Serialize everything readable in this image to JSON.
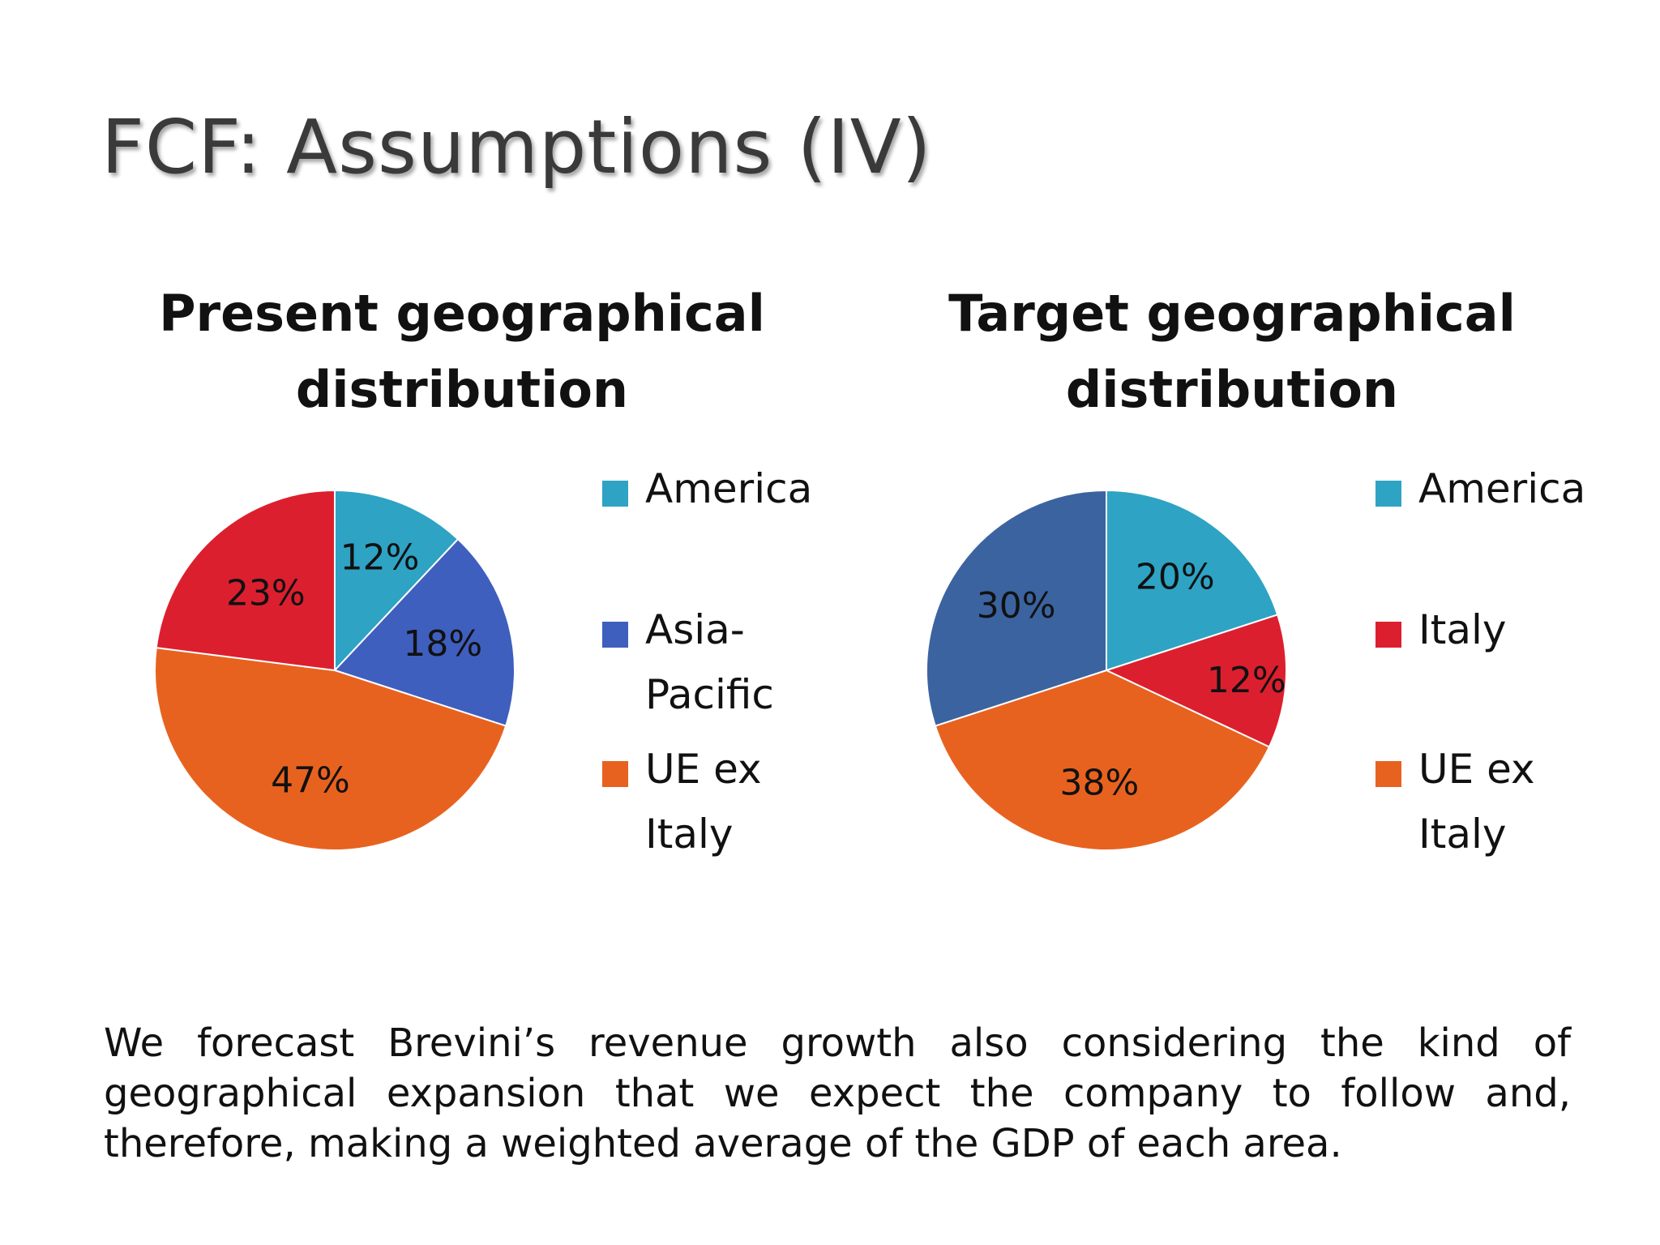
{
  "slide": {
    "title": "FCF: Assumptions (IV)",
    "body": "We forecast Brevini’s revenue growth also considering the kind of geographical expansion that we expect the company to follow and, therefore, making a weighted average of the GDP of each area."
  },
  "colors": {
    "America": "#2ea3c4",
    "Asia-Pacific": "#3f5fbf",
    "UE ex Italy": "#e8621f",
    "Italy": "#dc1f2e",
    "Asia-Pacific (target)": "#3b63a0"
  },
  "chart_data": [
    {
      "type": "pie",
      "title": "Present geographical distribution",
      "labels": [
        "America",
        "Asia-Pacific",
        "UE ex Italy",
        "Italy"
      ],
      "legend_labels": [
        "America",
        "Asia-\nPacific",
        "UE ex\nItaly"
      ],
      "values": [
        12,
        18,
        47,
        23
      ],
      "data_labels": [
        "12%",
        "18%",
        "47%",
        "23%"
      ],
      "colors": [
        "#2ea3c4",
        "#3f5fbf",
        "#e8621f",
        "#dc1f2e"
      ],
      "legend_placement": "right"
    },
    {
      "type": "pie",
      "title": "Target geographical distribution",
      "labels": [
        "America",
        "Italy",
        "UE ex Italy",
        "Asia-Pacific"
      ],
      "legend_labels": [
        "America",
        "Italy",
        "UE ex\nItaly"
      ],
      "values": [
        20,
        12,
        38,
        30
      ],
      "data_labels": [
        "20%",
        "12%",
        "38%",
        "30%"
      ],
      "colors": [
        "#2ea3c4",
        "#dc1f2e",
        "#e8621f",
        "#3b63a0"
      ],
      "legend_placement": "right"
    }
  ]
}
